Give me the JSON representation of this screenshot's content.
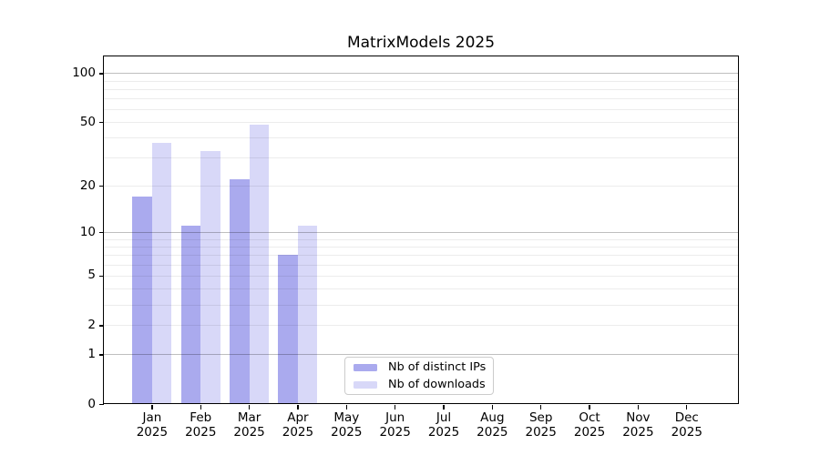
{
  "chart_data": {
    "type": "bar",
    "title": "MatrixModels 2025",
    "x_labels": [
      {
        "month": "Jan",
        "year": "2025"
      },
      {
        "month": "Feb",
        "year": "2025"
      },
      {
        "month": "Mar",
        "year": "2025"
      },
      {
        "month": "Apr",
        "year": "2025"
      },
      {
        "month": "May",
        "year": "2025"
      },
      {
        "month": "Jun",
        "year": "2025"
      },
      {
        "month": "Jul",
        "year": "2025"
      },
      {
        "month": "Aug",
        "year": "2025"
      },
      {
        "month": "Sep",
        "year": "2025"
      },
      {
        "month": "Oct",
        "year": "2025"
      },
      {
        "month": "Nov",
        "year": "2025"
      },
      {
        "month": "Dec",
        "year": "2025"
      }
    ],
    "series": [
      {
        "name": "Nb of distinct IPs",
        "color": "#aaaaee",
        "values": [
          17,
          11,
          22,
          7,
          null,
          null,
          null,
          null,
          null,
          null,
          null,
          null
        ]
      },
      {
        "name": "Nb of downloads",
        "color": "#d8d8f8",
        "values": [
          37,
          33,
          48,
          11,
          null,
          null,
          null,
          null,
          null,
          null,
          null,
          null
        ]
      }
    ],
    "y_ticks": [
      0,
      1,
      2,
      5,
      10,
      20,
      50,
      100
    ],
    "y_major_gridlines": [
      1,
      10,
      100
    ],
    "y_minor_gridlines": [
      2,
      3,
      4,
      5,
      6,
      7,
      8,
      9,
      20,
      30,
      40,
      50,
      60,
      70,
      80,
      90
    ],
    "scale": "log1p",
    "ylim": [
      0,
      128
    ],
    "xlabel": "",
    "ylabel": "",
    "grid": true,
    "legend_position": "lower center"
  },
  "colors": {
    "background": "#ffffff",
    "frame": "#000000",
    "bar_distinct_ips": "#aaaaee",
    "bar_downloads": "#d8d8f8",
    "legend_border": "#cccccc"
  }
}
